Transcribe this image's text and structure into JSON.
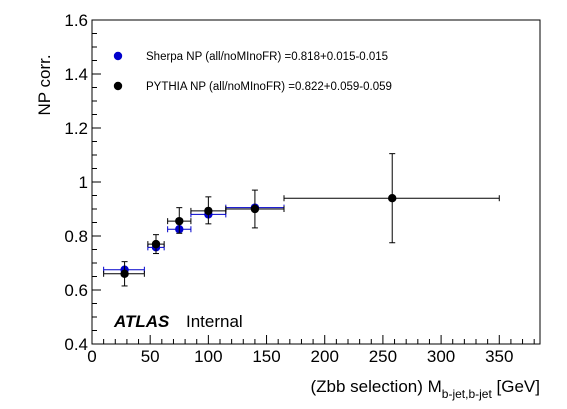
{
  "chart_data": {
    "type": "scatter",
    "xlabel_main": "(Zbb selection) M",
    "xlabel_sub": "b-jet,b-jet",
    "xlabel_unit": " [GeV]",
    "ylabel": "NP corr.",
    "xlim": [
      0,
      385
    ],
    "ylim": [
      0.4,
      1.6
    ],
    "x_ticks": [
      0,
      50,
      100,
      150,
      200,
      250,
      300,
      350
    ],
    "y_ticks": [
      0.4,
      0.6,
      0.8,
      1.0,
      1.2,
      1.4,
      1.6
    ],
    "y_tick_labels": [
      "0.4",
      "0.6",
      "0.8",
      "1",
      "1.2",
      "1.4",
      "1.6"
    ],
    "legend_position": "top-left",
    "series": [
      {
        "name": "Sherpa NP (all/noMInoFR) =0.818+0.015-0.015",
        "color": "#0000cc",
        "points": [
          {
            "x": 28,
            "xlo": 10,
            "xhi": 45,
            "y": 0.675,
            "ylo": 0.668,
            "yhi": 0.683
          },
          {
            "x": 55,
            "xlo": 48,
            "xhi": 62,
            "y": 0.758,
            "ylo": 0.75,
            "yhi": 0.766
          },
          {
            "x": 75,
            "xlo": 65,
            "xhi": 85,
            "y": 0.825,
            "ylo": 0.817,
            "yhi": 0.833
          },
          {
            "x": 100,
            "xlo": 85,
            "xhi": 115,
            "y": 0.88,
            "ylo": 0.872,
            "yhi": 0.888
          },
          {
            "x": 140,
            "xlo": 115,
            "xhi": 165,
            "y": 0.905,
            "ylo": 0.897,
            "yhi": 0.913
          }
        ]
      },
      {
        "name": "PYTHIA NP (all/noMInoFR) =0.822+0.059-0.059",
        "color": "#000000",
        "points": [
          {
            "x": 28,
            "xlo": 10,
            "xhi": 45,
            "y": 0.66,
            "ylo": 0.615,
            "yhi": 0.705
          },
          {
            "x": 55,
            "xlo": 48,
            "xhi": 62,
            "y": 0.77,
            "ylo": 0.735,
            "yhi": 0.805
          },
          {
            "x": 75,
            "xlo": 65,
            "xhi": 85,
            "y": 0.855,
            "ylo": 0.81,
            "yhi": 0.905
          },
          {
            "x": 100,
            "xlo": 85,
            "xhi": 115,
            "y": 0.893,
            "ylo": 0.845,
            "yhi": 0.945
          },
          {
            "x": 140,
            "xlo": 115,
            "xhi": 165,
            "y": 0.9,
            "ylo": 0.83,
            "yhi": 0.97
          },
          {
            "x": 258,
            "xlo": 165,
            "xhi": 350,
            "y": 0.94,
            "ylo": 0.775,
            "yhi": 1.105
          }
        ]
      }
    ],
    "annotations": {
      "atlas": "ATLAS",
      "internal": "Internal"
    }
  }
}
